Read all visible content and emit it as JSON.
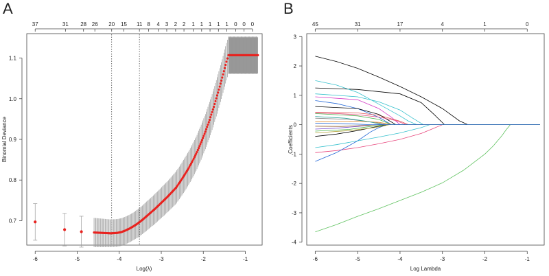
{
  "chart_data": [
    {
      "panel": "A",
      "type": "scatter",
      "title": "",
      "xlabel": "Log(λ)",
      "ylabel": "Binomial Deviance",
      "xlim": [
        -6.2,
        -0.6
      ],
      "ylim": [
        0.64,
        1.16
      ],
      "x_ticks": [
        -6,
        -5,
        -4,
        -3,
        -2,
        -1
      ],
      "x_tick_labels": [
        "-6",
        "-5",
        "-4",
        "-3",
        "-2",
        "-1"
      ],
      "y_ticks": [
        0.7,
        0.8,
        0.9,
        1.0,
        1.1
      ],
      "y_tick_labels": [
        "0.7",
        "0.8",
        "0.9",
        "1.0",
        "1.1"
      ],
      "top_counts": [
        "37",
        "31",
        "28",
        "26",
        "20",
        "15",
        "11",
        "8",
        "4",
        "3",
        "2",
        "2",
        "1",
        "1",
        "1",
        "1",
        "1",
        "0",
        "0",
        "0"
      ],
      "top_count_x": [
        -6.0,
        -5.28,
        -4.85,
        -4.58,
        -4.18,
        -3.89,
        -3.52,
        -3.3,
        -3.07,
        -2.87,
        -2.66,
        -2.46,
        -2.24,
        -2.04,
        -1.84,
        -1.64,
        -1.44,
        -1.23,
        -1.03,
        -0.83
      ],
      "vlines": {
        "lambda_min": -4.18,
        "lambda_1se": -3.52
      },
      "points": {
        "x": [
          -6.0,
          -5.3,
          -4.9,
          -4.6,
          -4.4,
          -4.2,
          -4.05,
          -3.95,
          -3.85,
          -3.75,
          -3.65,
          -3.55,
          -3.45,
          -3.35,
          -3.25,
          -3.15,
          -3.05,
          -2.95,
          -2.85,
          -2.75,
          -2.65,
          -2.55,
          -2.45,
          -2.35,
          -2.25,
          -2.15,
          -2.05,
          -1.95,
          -1.85,
          -1.75,
          -1.65,
          -1.55,
          -1.45,
          -1.4,
          -1.3,
          -1.2,
          -1.1,
          -1.0,
          -0.9,
          -0.8,
          -0.7
        ],
        "y": [
          0.697,
          0.678,
          0.673,
          0.671,
          0.67,
          0.669,
          0.67,
          0.672,
          0.676,
          0.681,
          0.687,
          0.694,
          0.702,
          0.711,
          0.72,
          0.729,
          0.739,
          0.749,
          0.759,
          0.77,
          0.781,
          0.796,
          0.812,
          0.829,
          0.848,
          0.869,
          0.893,
          0.919,
          0.948,
          0.98,
          1.015,
          1.052,
          1.091,
          1.107,
          1.107,
          1.107,
          1.107,
          1.107,
          1.107,
          1.107,
          1.107
        ],
        "err": [
          0.045,
          0.04,
          0.038,
          0.036,
          0.035,
          0.034,
          0.034,
          0.034,
          0.034,
          0.034,
          0.034,
          0.035,
          0.035,
          0.036,
          0.036,
          0.037,
          0.037,
          0.038,
          0.038,
          0.039,
          0.04,
          0.04,
          0.041,
          0.041,
          0.042,
          0.042,
          0.043,
          0.043,
          0.044,
          0.044,
          0.045,
          0.045,
          0.046,
          0.046,
          0.046,
          0.046,
          0.046,
          0.046,
          0.046,
          0.046,
          0.046
        ]
      },
      "point_color": "#e8221f",
      "bar_color": "#9a9a9a",
      "dense_band": {
        "x_start": -1.4,
        "x_end": -0.7,
        "y_low": 1.062,
        "y_high": 1.151
      }
    },
    {
      "panel": "B",
      "type": "line",
      "title": "",
      "xlabel": "Log Lambda",
      "ylabel": "Coefficients",
      "xlim": [
        -6.2,
        -0.6
      ],
      "ylim": [
        -4.1,
        3.1
      ],
      "x_ticks": [
        -6,
        -5,
        -4,
        -3,
        -2,
        -1
      ],
      "x_tick_labels": [
        "-6",
        "-5",
        "-4",
        "-3",
        "-2",
        "-1"
      ],
      "y_ticks": [
        -4,
        -3,
        -2,
        -1,
        0,
        1,
        2,
        3
      ],
      "y_tick_labels": [
        "-4",
        "-3",
        "-2",
        "-1",
        "0",
        "1",
        "2",
        "3"
      ],
      "top_counts": [
        "45",
        "31",
        "17",
        "4",
        "1",
        "0"
      ],
      "top_count_x": [
        -6.0,
        -5.0,
        -4.0,
        -3.0,
        -2.0,
        -1.0
      ],
      "series": [
        {
          "name": "black-1",
          "color": "#000000",
          "x": [
            -6.0,
            -5.5,
            -5.0,
            -4.5,
            -4.0,
            -3.5,
            -3.0,
            -2.6,
            -2.4,
            -0.7
          ],
          "y": [
            2.33,
            2.15,
            1.92,
            1.62,
            1.3,
            0.95,
            0.55,
            0.13,
            0.0,
            0.0
          ]
        },
        {
          "name": "black-2",
          "color": "#000000",
          "x": [
            -6.0,
            -5.0,
            -4.0,
            -3.5,
            -3.2,
            -2.95,
            -0.7
          ],
          "y": [
            1.25,
            1.2,
            1.05,
            0.75,
            0.35,
            0.0,
            0.0
          ]
        },
        {
          "name": "green-main",
          "color": "#5fc25f",
          "x": [
            -6.0,
            -5.5,
            -5.0,
            -4.5,
            -4.0,
            -3.5,
            -3.0,
            -2.5,
            -2.0,
            -1.8,
            -1.6,
            -1.5,
            -1.4,
            -0.7
          ],
          "y": [
            -3.65,
            -3.4,
            -3.12,
            -2.86,
            -2.58,
            -2.3,
            -1.98,
            -1.55,
            -1.0,
            -0.72,
            -0.38,
            -0.18,
            0.0,
            0.0
          ]
        },
        {
          "name": "pink-neg",
          "color": "#e8477d",
          "x": [
            -6.0,
            -5.5,
            -5.0,
            -4.5,
            -4.0,
            -3.5,
            -3.2,
            -3.0,
            -0.7
          ],
          "y": [
            -0.95,
            -0.88,
            -0.78,
            -0.65,
            -0.5,
            -0.3,
            -0.12,
            0.0,
            0.0
          ]
        },
        {
          "name": "cyan-pos",
          "color": "#35c0cd",
          "x": [
            -6.0,
            -5.5,
            -5.0,
            -4.5,
            -4.0,
            -3.8,
            -3.6,
            -0.7
          ],
          "y": [
            1.5,
            1.35,
            1.1,
            0.7,
            0.3,
            0.12,
            0.0,
            0.0
          ]
        },
        {
          "name": "cyan-2",
          "color": "#35c0cd",
          "x": [
            -6.0,
            -5.0,
            -4.5,
            -4.0,
            -3.7,
            -3.45,
            -0.7
          ],
          "y": [
            1.05,
            0.95,
            0.78,
            0.5,
            0.22,
            0.0,
            0.0
          ]
        },
        {
          "name": "blue-neg",
          "color": "#2166d6",
          "x": [
            -6.0,
            -5.5,
            -5.0,
            -4.7,
            -4.5,
            -4.3,
            -0.7
          ],
          "y": [
            -1.25,
            -0.95,
            -0.55,
            -0.25,
            -0.1,
            0.0,
            0.0
          ]
        },
        {
          "name": "cyan-neg",
          "color": "#35c0cd",
          "x": [
            -6.0,
            -5.5,
            -5.0,
            -4.5,
            -4.0,
            -3.5,
            -3.3,
            -0.7
          ],
          "y": [
            -0.78,
            -0.68,
            -0.55,
            -0.42,
            -0.28,
            -0.1,
            0.0,
            0.0
          ]
        },
        {
          "name": "magenta-1",
          "color": "#d438c6",
          "x": [
            -6.0,
            -5.0,
            -4.5,
            -4.2,
            -4.0,
            -0.7
          ],
          "y": [
            0.95,
            0.85,
            0.55,
            0.25,
            0.0,
            0.0
          ]
        },
        {
          "name": "blue-1",
          "color": "#2166d6",
          "x": [
            -6.0,
            -5.5,
            -5.0,
            -4.5,
            -4.2,
            -0.7
          ],
          "y": [
            0.82,
            0.72,
            0.55,
            0.25,
            0.0,
            0.0
          ]
        },
        {
          "name": "red-1",
          "color": "#df5353",
          "x": [
            -6.0,
            -5.0,
            -4.5,
            -4.0,
            -3.8,
            -0.7
          ],
          "y": [
            0.42,
            0.4,
            0.32,
            0.12,
            0.0,
            0.0
          ]
        },
        {
          "name": "green-1",
          "color": "#4bb34b",
          "x": [
            -6.0,
            -5.0,
            -4.5,
            -4.2,
            -0.7
          ],
          "y": [
            0.38,
            0.3,
            0.18,
            0.0,
            0.0
          ]
        },
        {
          "name": "black-3",
          "color": "#000000",
          "x": [
            -6.0,
            -5.0,
            -4.5,
            -4.1,
            -0.7
          ],
          "y": [
            0.62,
            0.55,
            0.35,
            0.0,
            0.0
          ]
        },
        {
          "name": "black-4",
          "color": "#000000",
          "x": [
            -6.0,
            -5.5,
            -5.0,
            -4.6,
            -4.3,
            -0.7
          ],
          "y": [
            -0.4,
            -0.32,
            -0.2,
            -0.08,
            0.0,
            0.0
          ]
        },
        {
          "name": "gray-1",
          "color": "#888888",
          "x": [
            -6.0,
            -5.2,
            -4.6,
            -4.3,
            -0.7
          ],
          "y": [
            0.22,
            0.18,
            0.08,
            0.0,
            0.0
          ]
        },
        {
          "name": "olive-1",
          "color": "#b3a33b",
          "x": [
            -6.0,
            -5.2,
            -4.6,
            -4.25,
            -0.7
          ],
          "y": [
            -0.28,
            -0.2,
            -0.1,
            0.0,
            0.0
          ]
        },
        {
          "name": "orange-1",
          "color": "#e08a2f",
          "x": [
            -6.0,
            -5.0,
            -4.5,
            -4.15,
            -0.7
          ],
          "y": [
            0.1,
            0.12,
            0.08,
            0.0,
            0.0
          ]
        },
        {
          "name": "purple-1",
          "color": "#7a4fd0",
          "x": [
            -6.0,
            -5.5,
            -5.0,
            -4.6,
            -0.7
          ],
          "y": [
            -0.15,
            -0.12,
            -0.06,
            0.0,
            0.0
          ]
        },
        {
          "name": "teal-1",
          "color": "#2aa198",
          "x": [
            -6.0,
            -5.3,
            -4.8,
            -4.4,
            -0.7
          ],
          "y": [
            0.28,
            0.22,
            0.12,
            0.0,
            0.0
          ]
        },
        {
          "name": "pink-1",
          "color": "#e8477d",
          "x": [
            -6.0,
            -5.5,
            -5.0,
            -4.5,
            -4.1,
            -3.85,
            -0.7
          ],
          "y": [
            0.4,
            0.38,
            0.34,
            0.26,
            0.14,
            0.0,
            0.0
          ]
        },
        {
          "name": "brown-1",
          "color": "#8c5a2b",
          "x": [
            -6.0,
            -5.4,
            -4.9,
            -4.5,
            -0.7
          ],
          "y": [
            -0.05,
            -0.06,
            -0.03,
            0.0,
            0.0
          ]
        },
        {
          "name": "green-2",
          "color": "#4bb34b",
          "x": [
            -6.0,
            -5.2,
            -4.7,
            -4.35,
            -0.7
          ],
          "y": [
            -0.22,
            -0.16,
            -0.06,
            0.0,
            0.0
          ]
        },
        {
          "name": "blue-2",
          "color": "#2166d6",
          "x": [
            -6.0,
            -5.5,
            -5.0,
            -4.7,
            -0.7
          ],
          "y": [
            0.05,
            0.04,
            0.02,
            0.0,
            0.0
          ]
        }
      ]
    }
  ],
  "labels": {
    "panel_a": "A",
    "panel_b": "B"
  }
}
